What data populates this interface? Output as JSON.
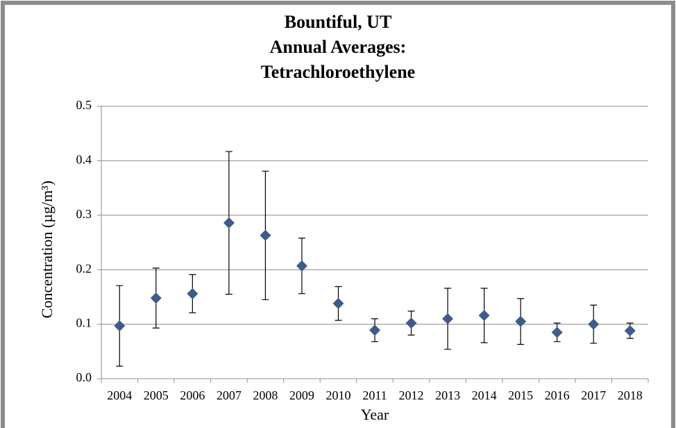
{
  "chart_data": {
    "type": "errorbar-scatter",
    "title": [
      "Bountiful, UT",
      "Annual Averages:",
      "Tetrachloroethylene"
    ],
    "x_label": "Year",
    "y_label": "Concentration (µg/m³)",
    "categories": [
      "2004",
      "2005",
      "2006",
      "2007",
      "2008",
      "2009",
      "2010",
      "2011",
      "2012",
      "2013",
      "2014",
      "2015",
      "2016",
      "2017",
      "2018"
    ],
    "values": [
      0.097,
      0.148,
      0.156,
      0.286,
      0.263,
      0.207,
      0.138,
      0.089,
      0.102,
      0.11,
      0.116,
      0.105,
      0.085,
      0.1,
      0.088
    ],
    "errors": [
      0.074,
      0.055,
      0.035,
      0.131,
      0.118,
      0.051,
      0.031,
      0.021,
      0.022,
      0.056,
      0.05,
      0.042,
      0.017,
      0.035,
      0.014
    ],
    "color": "#3e5b8a",
    "ylim": [
      0,
      0.5
    ],
    "yticks": [
      {
        "value": 0,
        "label": "0.0"
      },
      0.1,
      0.2,
      0.3,
      0.4,
      0.5
    ],
    "grid": true
  }
}
